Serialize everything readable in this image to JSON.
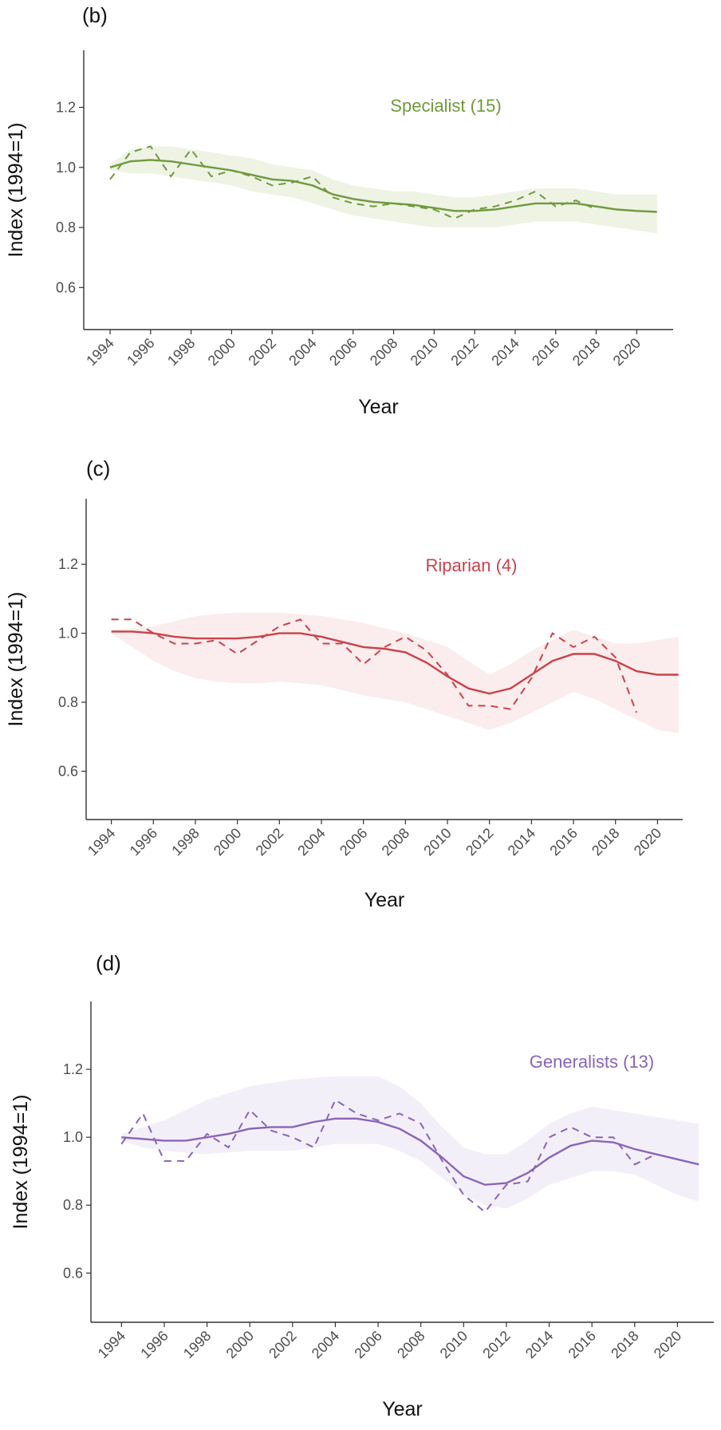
{
  "chart_data": [
    {
      "type": "line",
      "panel_label": "(b)",
      "annotation": "Specialist (15)",
      "x_label": "Year",
      "y_label": "Index (1994=1)",
      "x": [
        1994,
        1995,
        1996,
        1997,
        1998,
        1999,
        2000,
        2001,
        2002,
        2003,
        2004,
        2005,
        2006,
        2007,
        2008,
        2009,
        2010,
        2011,
        2012,
        2013,
        2014,
        2015,
        2016,
        2017,
        2018,
        2019,
        2020,
        2021
      ],
      "series": [
        {
          "color": "#6f9a3c",
          "dashed": true,
          "values": [
            0.96,
            1.05,
            1.07,
            0.97,
            1.06,
            0.97,
            0.99,
            0.97,
            0.94,
            0.95,
            0.97,
            0.9,
            0.88,
            0.87,
            0.88,
            0.87,
            0.86,
            0.83,
            0.86,
            0.87,
            0.89,
            0.92,
            0.87,
            0.89,
            0.86,
            null,
            null,
            null
          ]
        },
        {
          "color": "#6f9a3c",
          "dashed": false,
          "values": [
            1.0,
            1.02,
            1.025,
            1.02,
            1.01,
            1.0,
            0.99,
            0.975,
            0.96,
            0.955,
            0.94,
            0.91,
            0.895,
            0.885,
            0.88,
            0.875,
            0.865,
            0.855,
            0.855,
            0.86,
            0.87,
            0.88,
            0.88,
            0.88,
            0.87,
            0.86,
            0.855,
            0.852
          ]
        }
      ],
      "band": {
        "color": "#eef3e4",
        "lower": [
          0.99,
          0.98,
          0.98,
          0.97,
          0.96,
          0.95,
          0.94,
          0.92,
          0.91,
          0.9,
          0.88,
          0.86,
          0.84,
          0.83,
          0.82,
          0.81,
          0.8,
          0.8,
          0.8,
          0.8,
          0.81,
          0.82,
          0.82,
          0.82,
          0.81,
          0.8,
          0.79,
          0.78
        ],
        "upper": [
          1.01,
          1.06,
          1.07,
          1.07,
          1.06,
          1.05,
          1.04,
          1.03,
          1.01,
          1.0,
          0.99,
          0.96,
          0.94,
          0.93,
          0.92,
          0.92,
          0.91,
          0.9,
          0.9,
          0.91,
          0.92,
          0.93,
          0.93,
          0.93,
          0.92,
          0.91,
          0.91,
          0.91
        ]
      },
      "xlim": [
        1992.7,
        2021.8
      ],
      "xticks": [
        1994,
        1996,
        1998,
        2000,
        2002,
        2004,
        2006,
        2008,
        2010,
        2012,
        2014,
        2016,
        2018,
        2020
      ],
      "ylim": [
        0.46,
        1.39
      ],
      "yticks": [
        0.6,
        0.8,
        {
          "value": 1,
          "label": "1.0"
        },
        1.2
      ]
    },
    {
      "type": "line",
      "panel_label": "(c)",
      "annotation": "Riparian (4)",
      "x_label": "Year",
      "y_label": "Index (1994=1)",
      "x": [
        1994,
        1995,
        1996,
        1997,
        1998,
        1999,
        2000,
        2001,
        2002,
        2003,
        2004,
        2005,
        2006,
        2007,
        2008,
        2009,
        2010,
        2011,
        2012,
        2013,
        2014,
        2015,
        2016,
        2017,
        2018,
        2019,
        2020,
        2021
      ],
      "series": [
        {
          "color": "#c8434a",
          "dashed": true,
          "values": [
            1.04,
            1.04,
            1.0,
            0.97,
            0.97,
            0.98,
            0.94,
            0.98,
            1.02,
            1.04,
            0.97,
            0.97,
            0.91,
            0.96,
            0.99,
            0.95,
            0.88,
            0.79,
            0.79,
            0.78,
            0.87,
            1.0,
            0.96,
            0.99,
            0.93,
            0.77,
            null,
            null
          ]
        },
        {
          "color": "#c8434a",
          "dashed": false,
          "values": [
            1.005,
            1.005,
            1.0,
            0.99,
            0.985,
            0.985,
            0.985,
            0.99,
            1.0,
            1.0,
            0.99,
            0.975,
            0.96,
            0.955,
            0.945,
            0.915,
            0.875,
            0.84,
            0.825,
            0.84,
            0.88,
            0.92,
            0.94,
            0.94,
            0.92,
            0.89,
            0.88,
            0.88
          ]
        }
      ],
      "band": {
        "color": "#fbeced",
        "lower": [
          1.0,
          0.96,
          0.92,
          0.89,
          0.87,
          0.86,
          0.855,
          0.855,
          0.86,
          0.855,
          0.85,
          0.835,
          0.82,
          0.81,
          0.8,
          0.78,
          0.76,
          0.74,
          0.72,
          0.74,
          0.77,
          0.8,
          0.83,
          0.81,
          0.78,
          0.75,
          0.72,
          0.71
        ],
        "upper": [
          1.01,
          1.015,
          1.02,
          1.035,
          1.05,
          1.055,
          1.06,
          1.06,
          1.06,
          1.055,
          1.05,
          1.04,
          1.03,
          1.015,
          1.0,
          0.98,
          0.96,
          0.92,
          0.88,
          0.91,
          0.95,
          0.98,
          1.01,
          0.99,
          0.97,
          0.97,
          0.98,
          0.99
        ]
      },
      "xlim": [
        1992.8,
        2021.2
      ],
      "xticks": [
        1994,
        1996,
        1998,
        2000,
        2002,
        2004,
        2006,
        2008,
        2010,
        2012,
        2014,
        2016,
        2018,
        2020
      ],
      "ylim": [
        0.46,
        1.39
      ],
      "yticks": [
        0.6,
        0.8,
        {
          "value": 1,
          "label": "1.0"
        },
        1.2
      ]
    },
    {
      "type": "line",
      "panel_label": "(d)",
      "annotation": "Generalists (13)",
      "x_label": "Year",
      "y_label": "Index (1994=1)",
      "x": [
        1994,
        1995,
        1996,
        1997,
        1998,
        1999,
        2000,
        2001,
        2002,
        2003,
        2004,
        2005,
        2006,
        2007,
        2008,
        2009,
        2010,
        2011,
        2012,
        2013,
        2014,
        2015,
        2016,
        2017,
        2018,
        2019,
        2020,
        2021
      ],
      "series": [
        {
          "color": "#8a64b8",
          "dashed": true,
          "values": [
            0.98,
            1.07,
            0.93,
            0.93,
            1.01,
            0.97,
            1.08,
            1.02,
            1.0,
            0.97,
            1.11,
            1.07,
            1.05,
            1.07,
            1.04,
            0.93,
            0.83,
            0.78,
            0.86,
            0.87,
            1.0,
            1.03,
            1.0,
            1.0,
            0.92,
            0.95,
            null,
            null
          ]
        },
        {
          "color": "#8a64b8",
          "dashed": false,
          "values": [
            1.0,
            0.995,
            0.99,
            0.99,
            1.0,
            1.01,
            1.025,
            1.03,
            1.03,
            1.045,
            1.055,
            1.055,
            1.045,
            1.025,
            0.99,
            0.94,
            0.885,
            0.86,
            0.865,
            0.895,
            0.94,
            0.975,
            0.99,
            0.985,
            0.965,
            0.95,
            0.935,
            0.92
          ]
        }
      ],
      "band": {
        "color": "#f3eff8",
        "lower": [
          0.99,
          0.97,
          0.96,
          0.955,
          0.95,
          0.955,
          0.96,
          0.96,
          0.96,
          0.97,
          0.98,
          0.98,
          0.98,
          0.96,
          0.93,
          0.88,
          0.83,
          0.8,
          0.79,
          0.82,
          0.86,
          0.88,
          0.9,
          0.9,
          0.89,
          0.86,
          0.83,
          0.81
        ],
        "upper": [
          1.01,
          1.03,
          1.05,
          1.08,
          1.11,
          1.13,
          1.15,
          1.16,
          1.17,
          1.175,
          1.18,
          1.18,
          1.18,
          1.15,
          1.1,
          1.03,
          0.97,
          0.95,
          0.95,
          0.99,
          1.04,
          1.07,
          1.09,
          1.08,
          1.07,
          1.06,
          1.05,
          1.04
        ]
      },
      "xlim": [
        1992.57,
        2021.7
      ],
      "xticks": [
        1994,
        1996,
        1998,
        2000,
        2002,
        2004,
        2006,
        2008,
        2010,
        2012,
        2014,
        2016,
        2018,
        2020
      ],
      "ylim": [
        0.455,
        1.4
      ],
      "yticks": [
        0.6,
        0.8,
        {
          "value": 1,
          "label": "1.0"
        },
        1.2
      ]
    }
  ]
}
